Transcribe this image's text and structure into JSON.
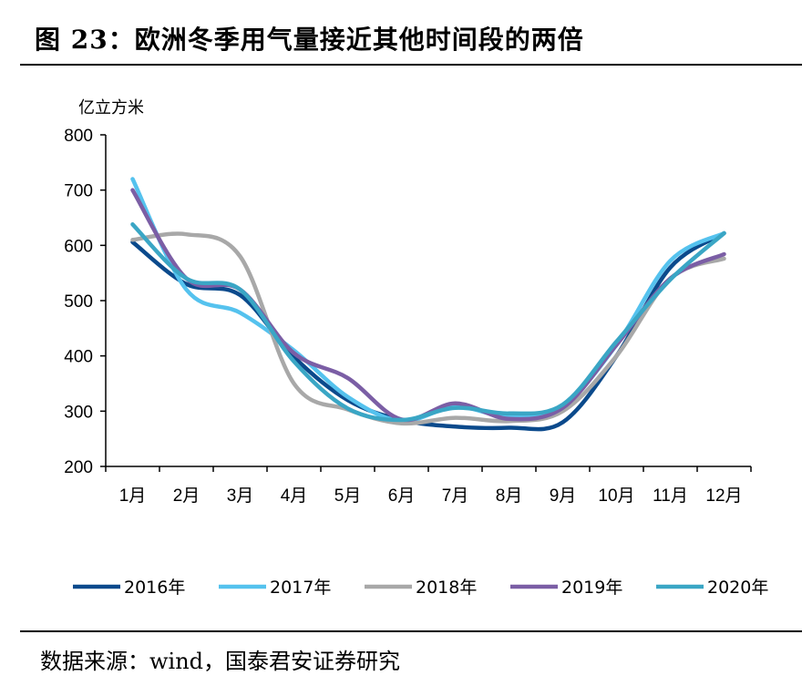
{
  "header": {
    "title": "图 23：欧洲冬季用气量接近其他时间段的两倍"
  },
  "footer": {
    "source": "数据来源：wind，国泰君安证券研究"
  },
  "chart_data": {
    "type": "line",
    "title": "",
    "xlabel": "",
    "ylabel": "亿立方米",
    "ylim": [
      200,
      800
    ],
    "yticks": [
      200,
      300,
      400,
      500,
      600,
      700,
      800
    ],
    "categories": [
      "1月",
      "2月",
      "3月",
      "4月",
      "5月",
      "6月",
      "7月",
      "8月",
      "9月",
      "10月",
      "11月",
      "12月"
    ],
    "grid": false,
    "legend_position": "bottom",
    "series": [
      {
        "name": "2016年",
        "color": "#0b4a8c",
        "values": [
          606,
          530,
          510,
          398,
          320,
          284,
          272,
          270,
          280,
          400,
          560,
          622
        ]
      },
      {
        "name": "2017年",
        "color": "#55c2ee",
        "values": [
          720,
          520,
          478,
          410,
          326,
          282,
          308,
          290,
          310,
          420,
          572,
          622
        ]
      },
      {
        "name": "2018年",
        "color": "#a8a8a8",
        "values": [
          610,
          620,
          580,
          350,
          303,
          278,
          288,
          282,
          300,
          400,
          540,
          576
        ]
      },
      {
        "name": "2019年",
        "color": "#7b5ea5",
        "values": [
          700,
          540,
          520,
          405,
          360,
          285,
          314,
          286,
          306,
          420,
          540,
          584
        ]
      },
      {
        "name": "2020年",
        "color": "#3aa6c5",
        "values": [
          638,
          540,
          520,
          390,
          305,
          284,
          306,
          296,
          312,
          426,
          538,
          622
        ]
      }
    ]
  }
}
